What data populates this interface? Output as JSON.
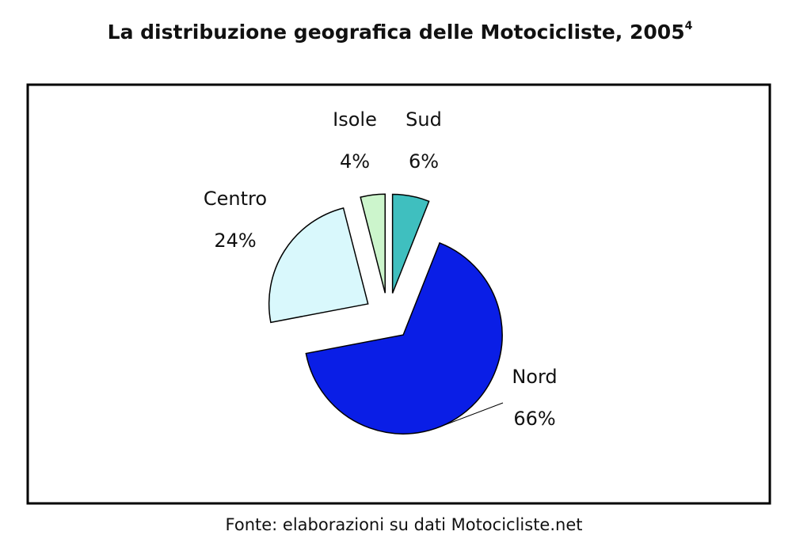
{
  "chart_data": {
    "type": "pie",
    "title": "La distribuzione geografica delle Motocicliste, 2005",
    "title_superscript": "4",
    "source": "Fonte: elaborazioni su dati Motocicliste.net",
    "categories": [
      "Sud",
      "Nord",
      "Centro",
      "Isole"
    ],
    "values": [
      6,
      66,
      24,
      4
    ],
    "value_labels": [
      "6%",
      "66%",
      "24%",
      "4%"
    ],
    "colors": [
      "#3fbfbf",
      "#0a1ee6",
      "#d9f8fc",
      "#ccf5cc"
    ],
    "exploded": true
  }
}
